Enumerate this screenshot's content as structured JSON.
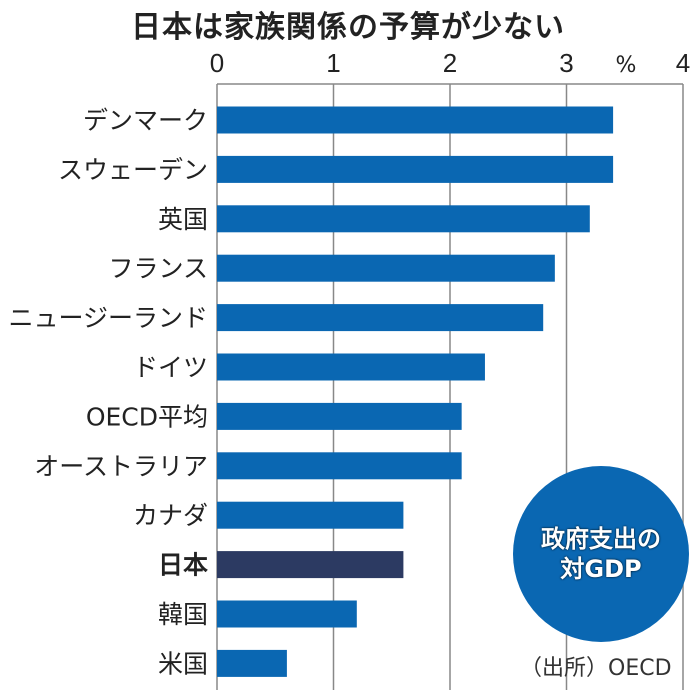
{
  "chart_data": {
    "type": "bar",
    "orientation": "horizontal",
    "title": "日本は家族関係の予算が少ない",
    "unit_label": "%",
    "categories": [
      "デンマーク",
      "スウェーデン",
      "英国",
      "フランス",
      "ニュージーランド",
      "ドイツ",
      "OECD平均",
      "オーストラリア",
      "カナダ",
      "日本",
      "韓国",
      "米国"
    ],
    "values": [
      3.4,
      3.4,
      3.2,
      2.9,
      2.8,
      2.3,
      2.1,
      2.1,
      1.6,
      1.6,
      1.2,
      0.6
    ],
    "highlight": "日本",
    "xlim": [
      0,
      4
    ],
    "ticks": [
      "0",
      "1",
      "2",
      "3",
      "4"
    ],
    "grid": true,
    "badge_lines": [
      "政府支出の",
      "対GDP"
    ],
    "source": "（出所）OECD",
    "colors": {
      "bar": "#0a67b2",
      "highlight": "#2c3a62",
      "grid": "#888888"
    }
  }
}
